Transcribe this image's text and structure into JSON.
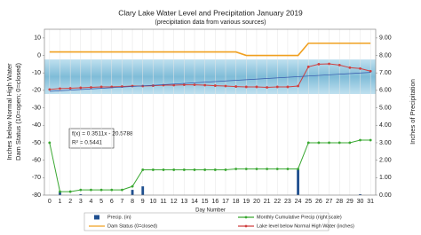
{
  "chart_data": {
    "type": "combo",
    "title": "Clary Lake Water Level and Precipitation January 2019",
    "subtitle": "(precipitation data from various sources)",
    "xlabel": "Day Number",
    "ylabel": [
      "Inches below Normal High Water",
      "Dam Status (10=open; 0=closed)"
    ],
    "y2label": "Inches of Precipitation",
    "x": [
      0,
      1,
      2,
      3,
      4,
      5,
      6,
      7,
      8,
      9,
      10,
      11,
      12,
      13,
      14,
      15,
      16,
      17,
      18,
      19,
      20,
      21,
      22,
      23,
      24,
      25,
      26,
      27,
      28,
      29,
      30,
      31
    ],
    "xlim": [
      -0.5,
      31.5
    ],
    "xticks": [
      0,
      1,
      2,
      3,
      4,
      5,
      6,
      7,
      8,
      9,
      10,
      11,
      12,
      13,
      14,
      15,
      16,
      17,
      18,
      19,
      20,
      21,
      22,
      23,
      24,
      25,
      26,
      27,
      28,
      29,
      30,
      31
    ],
    "ylim": [
      -80,
      15
    ],
    "yticks": [
      10,
      0,
      -10,
      -20,
      -30,
      -40,
      -50,
      -60,
      -70,
      -80
    ],
    "y2lim": [
      0,
      9.5
    ],
    "y2ticks": [
      {
        "value": 9,
        "label": "9.00"
      },
      {
        "value": 8,
        "label": "8.00"
      },
      {
        "value": 7,
        "label": "7.00"
      },
      {
        "value": 6,
        "label": "6.00"
      },
      {
        "value": 5,
        "label": "5.00"
      },
      {
        "value": 4,
        "label": "4.00"
      },
      {
        "value": 3,
        "label": "3.00"
      },
      {
        "value": 2,
        "label": "2.00"
      },
      {
        "value": 1,
        "label": "1.00"
      },
      {
        "value": 0,
        "label": "0.00"
      }
    ],
    "grid": true,
    "series": [
      {
        "name": "Precip. (in)",
        "type": "bar",
        "axis": "y2",
        "color": "#1f4f8f",
        "values": [
          0,
          0.2,
          0,
          0.05,
          0,
          0,
          0,
          0,
          0.3,
          0.5,
          0,
          0,
          0,
          0,
          0,
          0,
          0,
          0,
          0,
          0,
          0,
          0,
          0,
          0,
          1.5,
          0,
          0,
          0,
          0,
          0,
          0.05,
          0
        ]
      },
      {
        "name": "Monthly Cumulative Precip (right scale)",
        "type": "line",
        "axis": "y2",
        "color": "#3aa832",
        "markers": true,
        "values": [
          3.0,
          0.2,
          0.2,
          0.3,
          0.3,
          0.3,
          0.3,
          0.3,
          0.5,
          1.45,
          1.45,
          1.45,
          1.45,
          1.45,
          1.45,
          1.45,
          1.45,
          1.45,
          1.5,
          1.5,
          1.5,
          1.5,
          1.5,
          1.5,
          1.5,
          3.0,
          3.0,
          3.0,
          3.0,
          3.0,
          3.15,
          3.15
        ]
      },
      {
        "name": "Dam Status (0=closed)",
        "type": "line",
        "axis": "y",
        "color": "#f0a020",
        "markers": false,
        "values": [
          2,
          2,
          2,
          2,
          2,
          2,
          2,
          2,
          2,
          2,
          2,
          2,
          2,
          2,
          2,
          2,
          2,
          2,
          2,
          0,
          0,
          0,
          0,
          0,
          0,
          7,
          7,
          7,
          7,
          7,
          7,
          7
        ]
      },
      {
        "name": "Lake level below Normal High Water (inches)",
        "type": "line",
        "axis": "y",
        "color": "#d04040",
        "markers": true,
        "values": [
          -19.5,
          -19,
          -18.8,
          -18.5,
          -18.3,
          -18,
          -18,
          -17.8,
          -17.5,
          -17.5,
          -17.3,
          -17,
          -17,
          -16.8,
          -16.8,
          -17,
          -17.3,
          -17.5,
          -17.8,
          -18,
          -18,
          -18.3,
          -18,
          -18,
          -17.5,
          -6.5,
          -5,
          -4.8,
          -5.5,
          -7,
          -7.5,
          -9
        ]
      }
    ],
    "trend": {
      "slope": 0.3511,
      "intercept": -20.5788,
      "color": "#3355aa",
      "label": "f(x) = 0.3511x - 20.5788",
      "r2_label": "R² = 0.5441"
    }
  }
}
